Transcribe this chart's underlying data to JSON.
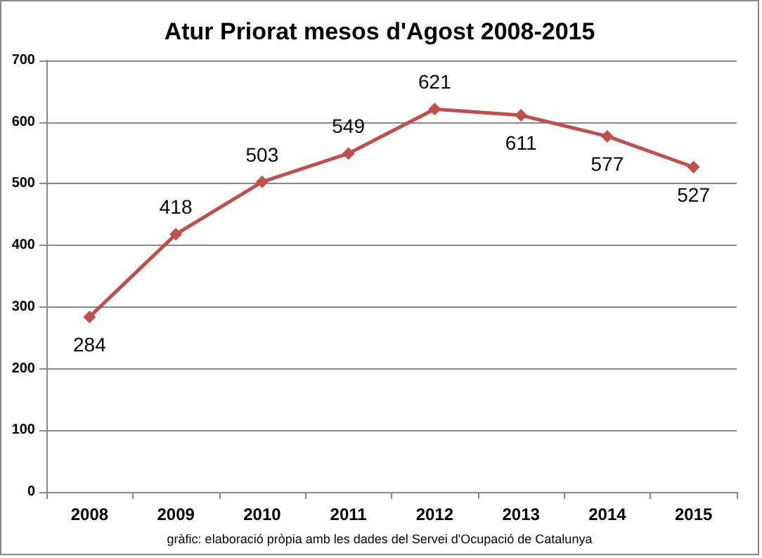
{
  "chart_data": {
    "type": "line",
    "title": "Atur Priorat mesos d'Agost 2008-2015",
    "categories": [
      "2008",
      "2009",
      "2010",
      "2011",
      "2012",
      "2013",
      "2014",
      "2015"
    ],
    "series": [
      {
        "color": "#c0504d",
        "values": [
          284,
          418,
          503,
          549,
          621,
          611,
          577,
          527
        ]
      }
    ],
    "ylim": [
      0,
      700
    ],
    "yticks": [
      0,
      100,
      200,
      300,
      400,
      500,
      600,
      700
    ],
    "grid": "y",
    "marker": "diamond",
    "line_style": "solid",
    "data_labels": true,
    "annotations": [
      "gràfic: elaboració pròpia amb les dades del Servei d'Ocupació de Catalunya"
    ]
  }
}
